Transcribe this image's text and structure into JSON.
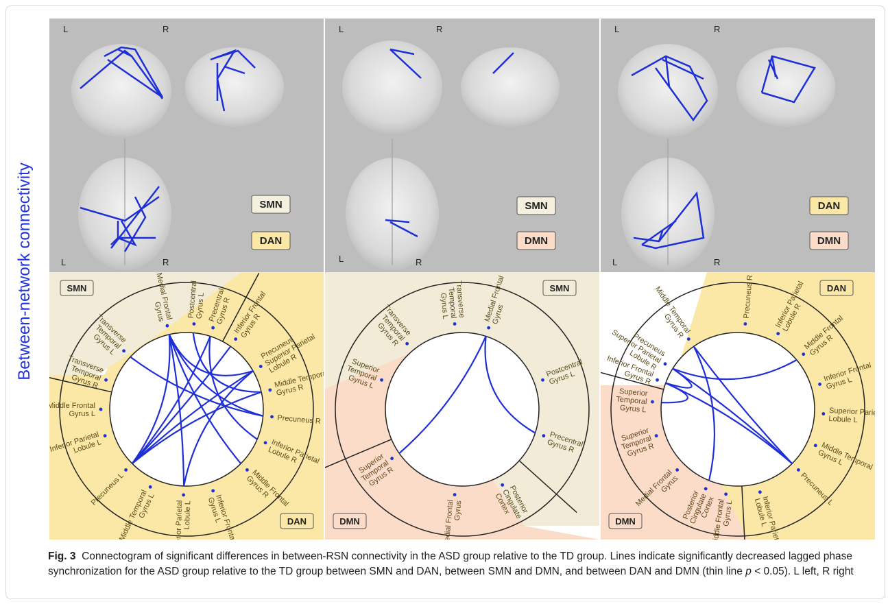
{
  "side_label": "Between-network connectivity",
  "panels": [
    {
      "orient": {
        "top_left": "L",
        "top_right": "R",
        "bottom_left": "L",
        "bottom_right": "R"
      },
      "badges": [
        "SMN",
        "DAN"
      ],
      "corner_labels": {
        "tl": "SMN",
        "br": "DAN"
      },
      "nodes": [
        "Medial Frontal\nGyrus",
        "Postcentral\nGyrus L",
        "Precentral\nGyrus R",
        "Inferior Frontal\nGyrus R",
        "Precuneus\nSuperior Parietal\nLobule R",
        "Middle Temporal\nGyrus R",
        "Precuneus R",
        "Inferior Parietal\nLobule R",
        "Middle Frontal\nGyrus R",
        "Inferior Frontal\nGyrus L",
        "Superior Parietal\nLobule L",
        "Middle Temporal\nGyrus L",
        "Precuneus L",
        "Inferior Parietal\nLobule L",
        "Middle Frontal\nGyrus L",
        "Transverse\nTemporal\nGyrus R",
        "Transverse\nTemporal\nGyrus L"
      ]
    },
    {
      "orient": {
        "top_left": "L",
        "top_right": "R",
        "bottom_left": "L",
        "bottom_right": "R"
      },
      "badges": [
        "SMN",
        "DMN"
      ],
      "corner_labels": {
        "tr": "SMN",
        "bl": "DMN"
      },
      "nodes": [
        "Medial Frontal\nGyrus",
        "Postcentral\nGyrus L",
        "Precentral\nGyrus R",
        "Posterior\nCingulate\nCortex",
        "Medial Frontal\nGyrus",
        "Superior\nTemporal\nGyrus R",
        "Superior\nTemporal\nGyrus L",
        "Transverse\nTemporal\nGyrus R",
        "Transverse\nTemporal\nGyrus L"
      ]
    },
    {
      "orient": {
        "top_left": "L",
        "top_right": "R",
        "bottom_left": "L",
        "bottom_right": "R"
      },
      "badges": [
        "DAN",
        "DMN"
      ],
      "corner_labels": {
        "tr": "DAN",
        "bl": "DMN"
      },
      "nodes": [
        "Precuneus R",
        "Inferior Parietal\nLobule R",
        "Middle Frontal\nGyrus R",
        "Inferior Frontal\nGyrus L",
        "Superior Parietal\nLobule L",
        "Middle Temporal\nGyrus L",
        "Precuneus L",
        "Inferior Parietal\nLobule L",
        "Middle Frontal\nGyrus L",
        "Posterior\nCingulate\nCortex",
        "Medial Frontal\nGyrus",
        "Superior\nTemporal\nGyrus R",
        "Superior\nTemporal\nGyrus L",
        "Inferior Frontal\nGyrus R",
        "Precuneus\nSuperior Parietal\nLobule R",
        "Middle Temporal\nGyrus R"
      ]
    }
  ],
  "caption": {
    "fig": "Fig. 3",
    "pre": "Connectogram of significant differences in between-RSN connectivity in the ASD group relative to the TD group. Lines indicate significantly decreased lagged phase synchronization for the ASD group relative to the TD group between SMN and DAN, between SMN and DMN, and between DAN and DMN (thin line ",
    "p": "p",
    "post": " < 0.05). L left, R right"
  },
  "colors": {
    "line": "#1f2fd6",
    "dan": "#fbe7a6",
    "smn": "#f2ebd8",
    "dmn": "#fbdcc9",
    "brain_bg": "#bdbdbd"
  }
}
